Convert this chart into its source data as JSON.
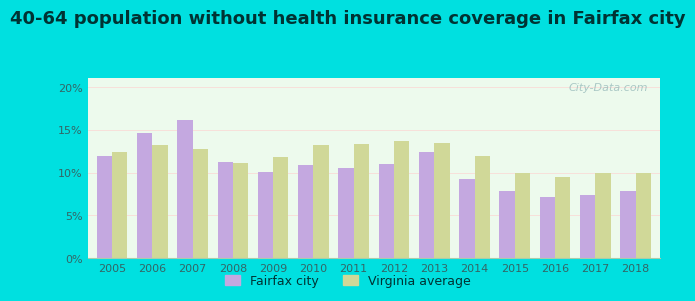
{
  "title": "40-64 population without health insurance coverage in Fairfax city",
  "years": [
    2005,
    2006,
    2007,
    2008,
    2009,
    2010,
    2011,
    2012,
    2013,
    2014,
    2015,
    2016,
    2017,
    2018
  ],
  "fairfax_values": [
    11.9,
    14.6,
    16.1,
    11.2,
    10.1,
    10.9,
    10.5,
    11.0,
    12.4,
    9.2,
    7.9,
    7.2,
    7.4,
    7.9
  ],
  "virginia_values": [
    12.4,
    13.2,
    12.8,
    11.1,
    11.8,
    13.2,
    13.3,
    13.7,
    13.5,
    11.9,
    9.9,
    9.5,
    10.0,
    10.0
  ],
  "fairfax_color": "#c4a8e0",
  "virginia_color": "#d0d898",
  "background_outer": "#00e0e0",
  "background_inner": "#edfaed",
  "ylim": [
    0,
    21
  ],
  "yticks": [
    0,
    5,
    10,
    15,
    20
  ],
  "ytick_labels": [
    "0%",
    "5%",
    "10%",
    "15%",
    "20%"
  ],
  "legend_fairfax": "Fairfax city",
  "legend_virginia": "Virginia average",
  "watermark": "City-Data.com",
  "title_fontsize": 13,
  "bar_width": 0.38
}
